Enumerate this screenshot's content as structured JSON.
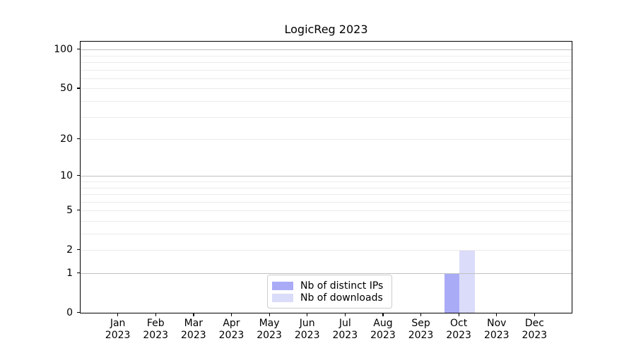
{
  "figure": {
    "background": "#ffffff"
  },
  "chart_data": {
    "type": "bar",
    "title": "LogicReg 2023",
    "categories": [
      "Jan",
      "Feb",
      "Mar",
      "Apr",
      "May",
      "Jun",
      "Jul",
      "Aug",
      "Sep",
      "Oct",
      "Nov",
      "Dec"
    ],
    "year_label": "2023",
    "series": [
      {
        "name": "Nb of distinct IPs",
        "color": "#aaabf7",
        "values": [
          0,
          0,
          0,
          0,
          0,
          0,
          0,
          0,
          0,
          1,
          0,
          0
        ]
      },
      {
        "name": "Nb of downloads",
        "color": "#dbdcfa",
        "values": [
          0,
          0,
          0,
          0,
          0,
          0,
          0,
          0,
          0,
          2,
          0,
          0
        ]
      }
    ],
    "xlabel": "",
    "ylabel": "",
    "yscale": "log1p",
    "ylim": [
      0,
      115
    ],
    "yticks": [
      0,
      1,
      2,
      5,
      10,
      20,
      50,
      100
    ],
    "major_gridlines": [
      1,
      10,
      100
    ],
    "minor_gridlines": [
      2,
      3,
      4,
      5,
      6,
      7,
      8,
      9,
      20,
      30,
      40,
      50,
      60,
      70,
      80,
      90
    ],
    "grid": true,
    "legend_position": "lower center",
    "colors": {
      "major_grid": "#c0c0c0",
      "minor_grid": "#ebebeb",
      "axis": "#000000",
      "text": "#000000",
      "legend_border": "#cccccc"
    }
  }
}
